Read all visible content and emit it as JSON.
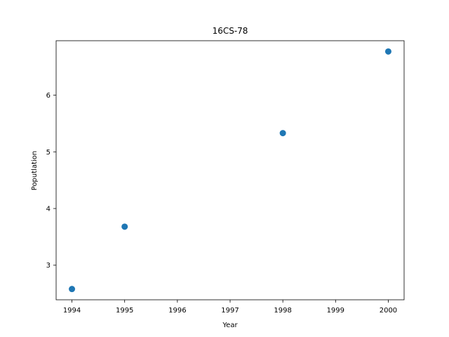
{
  "chart_data": {
    "type": "scatter",
    "title": "16CS-78",
    "xlabel": "Year",
    "ylabel": "Poputlation",
    "x": [
      1994,
      1995,
      1998,
      2000
    ],
    "y": [
      2.58,
      3.68,
      5.33,
      6.77
    ],
    "xlim": [
      1993.7,
      2000.3
    ],
    "ylim": [
      2.39,
      6.96
    ],
    "xticks": [
      1994,
      1995,
      1996,
      1997,
      1998,
      1999,
      2000
    ],
    "yticks": [
      3,
      4,
      5,
      6
    ],
    "marker_color": "#1f77b4",
    "grid": false,
    "legend": "none"
  }
}
